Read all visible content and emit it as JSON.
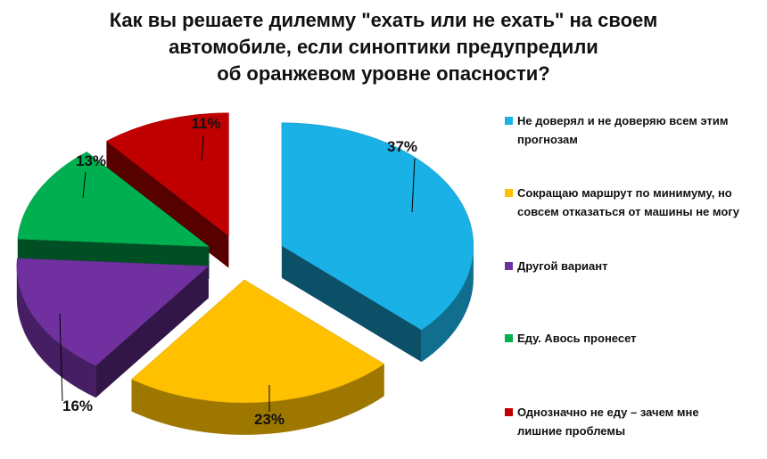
{
  "chart_data": {
    "type": "pie",
    "title": "Как вы решаете дилемму \"ехать или не ехать\" на своем автомобиле, если синоптики предупредили об оранжевом уровне опасности?",
    "title_lines": [
      "Как вы решаете дилемму \"ехать или не ехать\" на своем",
      "автомобиле, если синоптики предупредили",
      "об оранжевом уровне опасности?"
    ],
    "style": "exploded 3D pie",
    "legend_position": "right",
    "slices": [
      {
        "label": "Не доверял и не доверяю всем этим прогнозам",
        "legend_lines": [
          "Не доверял и не доверяю всем этим",
          "прогнозам"
        ],
        "value": 37,
        "value_label": "37%",
        "color": "#1ab1e6"
      },
      {
        "label": "Сокращаю маршрут по минимуму, но совсем отказаться от машины не могу",
        "legend_lines": [
          "Сокращаю маршрут по минимуму, но",
          "совсем отказаться от машины не могу"
        ],
        "value": 23,
        "value_label": "23%",
        "color": "#ffc000"
      },
      {
        "label": "Другой вариант",
        "legend_lines": [
          "Другой вариант"
        ],
        "value": 16,
        "value_label": "16%",
        "color": "#7030a0"
      },
      {
        "label": "Еду. Авось пронесет",
        "legend_lines": [
          "Еду. Авось пронесет"
        ],
        "value": 13,
        "value_label": "13%",
        "color": "#00b050"
      },
      {
        "label": "Однозначно не еду – зачем мне лишние проблемы",
        "legend_lines": [
          "Однозначно не еду – зачем мне",
          "лишние проблемы"
        ],
        "value": 11,
        "value_label": "11%",
        "color": "#c00000"
      }
    ]
  }
}
